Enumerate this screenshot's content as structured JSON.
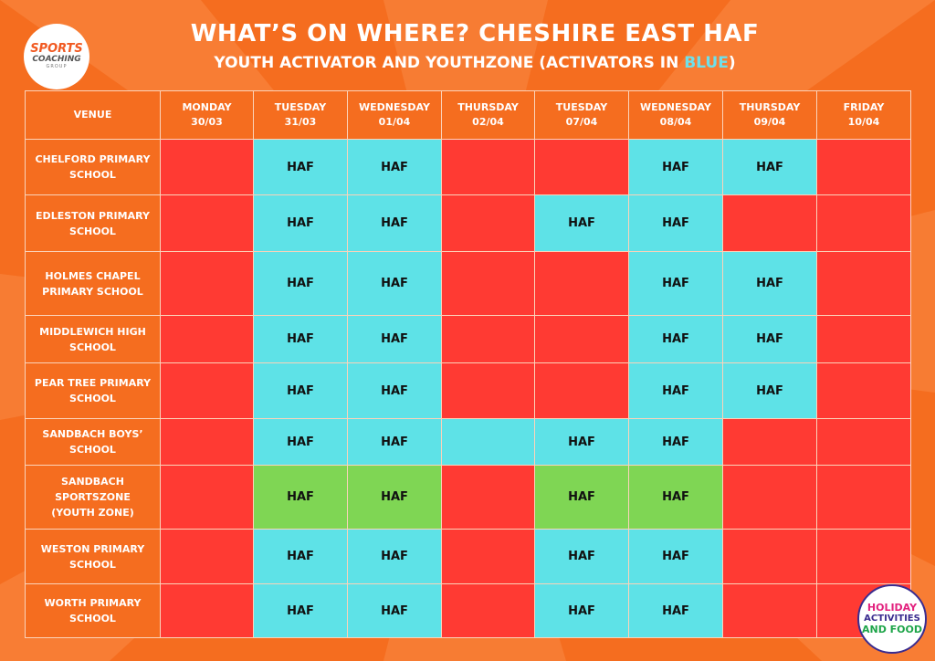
{
  "header": {
    "title": "WHAT’S ON WHERE? CHESHIRE EAST HAF",
    "subtitle_prefix": "YOUTH ACTIVATOR AND YOUTHZONE (ACTIVATORS IN ",
    "subtitle_highlight": "BLUE",
    "subtitle_suffix": ")",
    "highlight_color": "#6ee0ea"
  },
  "logos": {
    "sports_coaching": {
      "line1": "SPORTS",
      "line2": "COACHING",
      "line3": "GROUP"
    },
    "haf": {
      "line1": "HOLIDAY",
      "line2": "ACTIVITIES",
      "line3": "AND FOOD"
    }
  },
  "colors": {
    "background": "#f56d1f",
    "closed": "#ff3a33",
    "activator": "#5ee2e7",
    "youthzone": "#7fd654"
  },
  "table": {
    "venue_header": "VENUE",
    "days": [
      {
        "day": "MONDAY",
        "date": "30/03"
      },
      {
        "day": "TUESDAY",
        "date": "31/03"
      },
      {
        "day": "WEDNESDAY",
        "date": "01/04"
      },
      {
        "day": "THURSDAY",
        "date": "02/04"
      },
      {
        "day": "TUESDAY",
        "date": "07/04"
      },
      {
        "day": "WEDNESDAY",
        "date": "08/04"
      },
      {
        "day": "THURSDAY",
        "date": "09/04"
      },
      {
        "day": "FRIDAY",
        "date": "10/04"
      }
    ],
    "rows": [
      {
        "venue": [
          "CHELFORD PRIMARY",
          "SCHOOL"
        ],
        "cells": [
          {
            "status": "red",
            "text": ""
          },
          {
            "status": "blue",
            "text": "HAF"
          },
          {
            "status": "blue",
            "text": "HAF"
          },
          {
            "status": "red",
            "text": ""
          },
          {
            "status": "red",
            "text": ""
          },
          {
            "status": "blue",
            "text": "HAF"
          },
          {
            "status": "blue",
            "text": "HAF"
          },
          {
            "status": "red",
            "text": ""
          }
        ]
      },
      {
        "venue": [
          "EDLESTON PRIMARY",
          "SCHOOL"
        ],
        "cells": [
          {
            "status": "red",
            "text": ""
          },
          {
            "status": "blue",
            "text": "HAF"
          },
          {
            "status": "blue",
            "text": "HAF"
          },
          {
            "status": "red",
            "text": ""
          },
          {
            "status": "blue",
            "text": "HAF"
          },
          {
            "status": "blue",
            "text": "HAF"
          },
          {
            "status": "red",
            "text": ""
          },
          {
            "status": "red",
            "text": ""
          }
        ]
      },
      {
        "venue": [
          "HOLMES CHAPEL",
          "PRIMARY SCHOOL"
        ],
        "cells": [
          {
            "status": "red",
            "text": ""
          },
          {
            "status": "blue",
            "text": "HAF"
          },
          {
            "status": "blue",
            "text": "HAF"
          },
          {
            "status": "red",
            "text": ""
          },
          {
            "status": "red",
            "text": ""
          },
          {
            "status": "blue",
            "text": "HAF"
          },
          {
            "status": "blue",
            "text": "HAF"
          },
          {
            "status": "red",
            "text": ""
          }
        ]
      },
      {
        "venue": [
          "MIDDLEWICH HIGH",
          "SCHOOL"
        ],
        "cells": [
          {
            "status": "red",
            "text": ""
          },
          {
            "status": "blue",
            "text": "HAF"
          },
          {
            "status": "blue",
            "text": "HAF"
          },
          {
            "status": "red",
            "text": ""
          },
          {
            "status": "red",
            "text": ""
          },
          {
            "status": "blue",
            "text": "HAF"
          },
          {
            "status": "blue",
            "text": "HAF"
          },
          {
            "status": "red",
            "text": ""
          }
        ]
      },
      {
        "venue": [
          "PEAR TREE PRIMARY",
          "SCHOOL"
        ],
        "cells": [
          {
            "status": "red",
            "text": ""
          },
          {
            "status": "blue",
            "text": "HAF"
          },
          {
            "status": "blue",
            "text": "HAF"
          },
          {
            "status": "red",
            "text": ""
          },
          {
            "status": "red",
            "text": ""
          },
          {
            "status": "blue",
            "text": "HAF"
          },
          {
            "status": "blue",
            "text": "HAF"
          },
          {
            "status": "red",
            "text": ""
          }
        ]
      },
      {
        "venue": [
          "SANDBACH BOYS’",
          "SCHOOL"
        ],
        "cells": [
          {
            "status": "red",
            "text": ""
          },
          {
            "status": "blue",
            "text": "HAF"
          },
          {
            "status": "blue",
            "text": "HAF"
          },
          {
            "status": "blue",
            "text": ""
          },
          {
            "status": "blue",
            "text": "HAF"
          },
          {
            "status": "blue",
            "text": "HAF"
          },
          {
            "status": "red",
            "text": ""
          },
          {
            "status": "red",
            "text": ""
          }
        ]
      },
      {
        "venue": [
          "SANDBACH",
          "SPORTSZONE",
          "(YOUTH ZONE)"
        ],
        "cells": [
          {
            "status": "red",
            "text": ""
          },
          {
            "status": "green",
            "text": "HAF"
          },
          {
            "status": "green",
            "text": "HAF"
          },
          {
            "status": "red",
            "text": ""
          },
          {
            "status": "green",
            "text": "HAF"
          },
          {
            "status": "green",
            "text": "HAF"
          },
          {
            "status": "red",
            "text": ""
          },
          {
            "status": "red",
            "text": ""
          }
        ]
      },
      {
        "venue": [
          "WESTON PRIMARY",
          "SCHOOL"
        ],
        "cells": [
          {
            "status": "red",
            "text": ""
          },
          {
            "status": "blue",
            "text": "HAF"
          },
          {
            "status": "blue",
            "text": "HAF"
          },
          {
            "status": "red",
            "text": ""
          },
          {
            "status": "blue",
            "text": "HAF"
          },
          {
            "status": "blue",
            "text": "HAF"
          },
          {
            "status": "red",
            "text": ""
          },
          {
            "status": "red",
            "text": ""
          }
        ]
      },
      {
        "venue": [
          "WORTH PRIMARY",
          "SCHOOL"
        ],
        "cells": [
          {
            "status": "red",
            "text": ""
          },
          {
            "status": "blue",
            "text": "HAF"
          },
          {
            "status": "blue",
            "text": "HAF"
          },
          {
            "status": "red",
            "text": ""
          },
          {
            "status": "blue",
            "text": "HAF"
          },
          {
            "status": "blue",
            "text": "HAF"
          },
          {
            "status": "red",
            "text": ""
          },
          {
            "status": "red",
            "text": ""
          }
        ]
      }
    ]
  }
}
